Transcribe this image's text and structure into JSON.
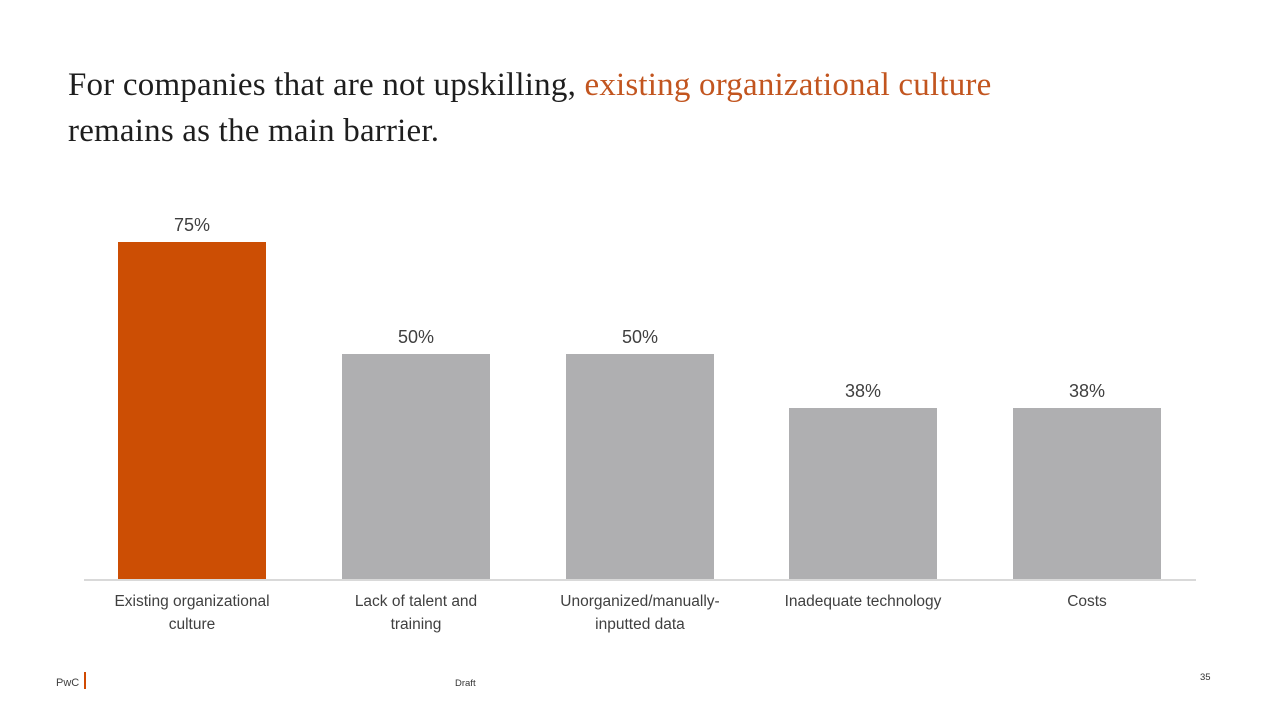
{
  "slide": {
    "title": {
      "prefix": "For companies that are not upskilling, ",
      "highlight": "existing organizational culture",
      "suffix": "\nremains as the main barrier.",
      "highlight_color": "#c2551f"
    }
  },
  "chart_data": {
    "type": "bar",
    "title": "",
    "xlabel": "",
    "ylabel": "",
    "categories": [
      "Existing organizational\nculture",
      "Lack of talent and\ntraining",
      "Unorganized/manually-\ninputted data",
      "Inadequate technology",
      "Costs"
    ],
    "values": [
      75,
      50,
      50,
      38,
      38
    ],
    "value_labels": [
      "75%",
      "50%",
      "50%",
      "38%",
      "38%"
    ],
    "highlight_index": 0,
    "colors": {
      "highlight": "#cc4e04",
      "default": "#afafb1",
      "axis_line": "#d9d9d9",
      "label_text": "#3f3f3f"
    },
    "ylim": [
      0,
      100
    ],
    "grid": false,
    "legend": false,
    "data_labels_position": "above-bar"
  },
  "footer": {
    "brand": "PwC",
    "status": "Draft",
    "page_number": "35",
    "divider_color": "#d04a02"
  }
}
